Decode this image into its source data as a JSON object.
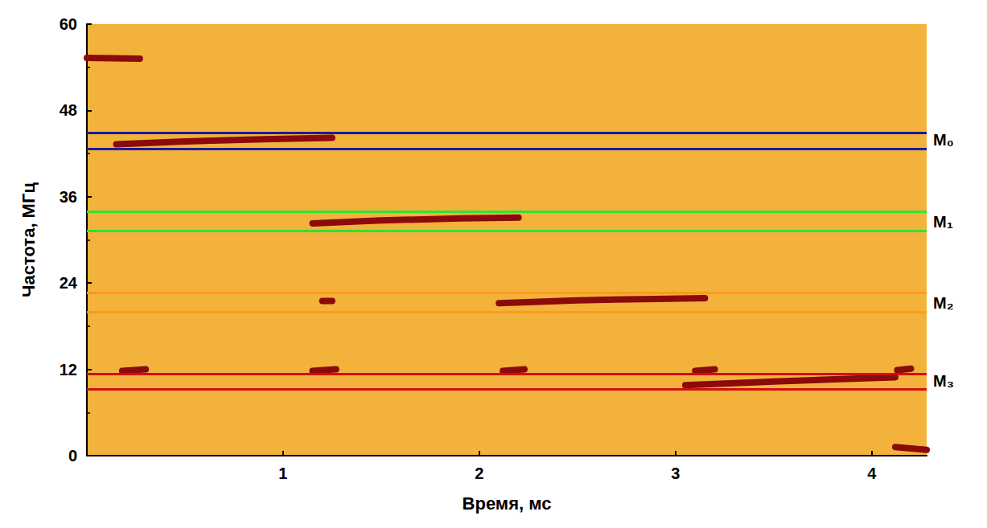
{
  "chart_data": {
    "type": "spectrogram",
    "x_label": "Время, мс",
    "y_label": "Частота, МГц",
    "xlim": [
      0,
      4.28
    ],
    "xticks": [
      1,
      2,
      3,
      4
    ],
    "ylim": [
      0,
      60
    ],
    "yticks": [
      0,
      12,
      24,
      36,
      48,
      60
    ],
    "color": "#8b0a0a",
    "traces": [
      {
        "x": [
          0,
          0.27
        ],
        "y": [
          55.3,
          55.2
        ]
      },
      {
        "x": [
          0.15,
          0.5,
          0.9,
          1.25
        ],
        "y": [
          43.3,
          43.7,
          44.0,
          44.2
        ]
      },
      {
        "x": [
          1.15,
          1.5,
          1.9,
          2.2
        ],
        "y": [
          32.3,
          32.7,
          33.0,
          33.1
        ]
      },
      {
        "x": [
          2.1,
          2.5,
          2.9,
          3.15
        ],
        "y": [
          21.2,
          21.6,
          21.8,
          21.9
        ]
      },
      {
        "x": [
          3.05,
          3.5,
          3.9,
          4.12
        ],
        "y": [
          9.8,
          10.3,
          10.7,
          10.9
        ]
      },
      {
        "x": [
          0.18,
          0.3
        ],
        "y": [
          11.8,
          12.0
        ]
      },
      {
        "x": [
          1.15,
          1.27
        ],
        "y": [
          11.8,
          12.0
        ]
      },
      {
        "x": [
          2.12,
          2.23
        ],
        "y": [
          11.8,
          12.0
        ]
      },
      {
        "x": [
          3.1,
          3.2
        ],
        "y": [
          11.8,
          12.0
        ]
      },
      {
        "x": [
          4.13,
          4.2
        ],
        "y": [
          11.9,
          12.1
        ]
      },
      {
        "x": [
          1.2,
          1.25
        ],
        "y": [
          21.5,
          21.5
        ]
      },
      {
        "x": [
          4.12,
          4.28
        ],
        "y": [
          1.2,
          0.8
        ]
      }
    ],
    "bands": [
      {
        "label": "M₀",
        "values": [
          44.9,
          42.7
        ],
        "color": "#1b1b9e"
      },
      {
        "label": "M₁",
        "values": [
          33.9,
          31.3
        ],
        "color": "#33e033"
      },
      {
        "label": "M₂",
        "values": [
          22.6,
          20.0
        ],
        "color": "#ff9a1a"
      },
      {
        "label": "M₃",
        "values": [
          11.4,
          9.2
        ],
        "color": "#d01010"
      }
    ]
  }
}
